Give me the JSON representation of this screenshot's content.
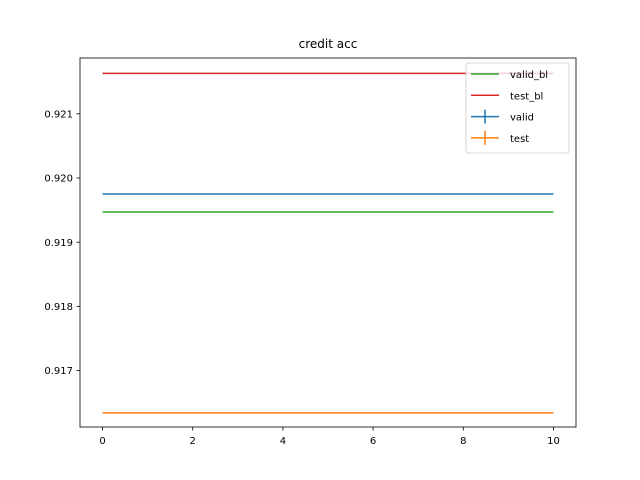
{
  "chart_data": {
    "type": "line",
    "title": "credit  acc",
    "xlabel": "",
    "ylabel": "",
    "xlim": [
      -0.5,
      10.5
    ],
    "ylim": [
      0.91612,
      0.92187
    ],
    "xticks": [
      0,
      2,
      4,
      6,
      8,
      10
    ],
    "yticks": [
      0.917,
      0.918,
      0.919,
      0.92,
      0.921
    ],
    "grid": false,
    "legend_position": "top-right",
    "series": [
      {
        "name": "valid_bl",
        "color": "#2ca02c",
        "style": "line",
        "x": [
          0,
          10
        ],
        "y": [
          0.91947,
          0.91947
        ]
      },
      {
        "name": "test_bl",
        "color": "#d62728",
        "style": "line",
        "x": [
          0,
          10
        ],
        "y": [
          0.92163,
          0.92163
        ]
      },
      {
        "name": "valid",
        "color": "#1f77b4",
        "style": "errorbar",
        "x": [
          0,
          1,
          2,
          3,
          4,
          5,
          6,
          7,
          8,
          9,
          10
        ],
        "y": [
          0.91975,
          0.91975,
          0.91975,
          0.91975,
          0.91975,
          0.91975,
          0.91975,
          0.91975,
          0.91975,
          0.91975,
          0.91975
        ]
      },
      {
        "name": "test",
        "color": "#ff7f0e",
        "style": "errorbar",
        "x": [
          0,
          1,
          2,
          3,
          4,
          5,
          6,
          7,
          8,
          9,
          10
        ],
        "y": [
          0.91634,
          0.91634,
          0.91634,
          0.91634,
          0.91634,
          0.91634,
          0.91634,
          0.91634,
          0.91634,
          0.91634,
          0.91634
        ]
      }
    ]
  }
}
